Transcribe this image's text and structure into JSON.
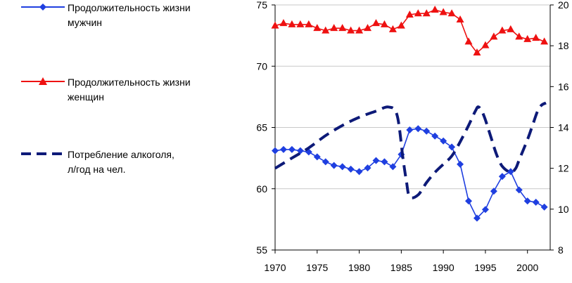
{
  "legend": {
    "male": "Продолжительность жизни\nмужчин",
    "female": "Продолжительность жизни\nженщин",
    "alcohol": "Потребление алкоголя,\nл/год на чел."
  },
  "chart_data": {
    "type": "line",
    "title": "",
    "xlabel": "",
    "ylabel": "",
    "x": [
      1970,
      1971,
      1972,
      1973,
      1974,
      1975,
      1976,
      1977,
      1978,
      1979,
      1980,
      1981,
      1982,
      1983,
      1984,
      1985,
      1986,
      1987,
      1988,
      1989,
      1990,
      1991,
      1992,
      1993,
      1994,
      1995,
      1996,
      1997,
      1998,
      1999,
      2000,
      2001,
      2002
    ],
    "xlim": [
      1970,
      2002.7
    ],
    "xticks": [
      1970,
      1975,
      1980,
      1985,
      1990,
      1995,
      2000
    ],
    "ylim": [
      55,
      75
    ],
    "yticks": [
      55,
      60,
      65,
      70,
      75
    ],
    "y2lim": [
      8,
      20
    ],
    "y2ticks": [
      8,
      10,
      12,
      14,
      16,
      18,
      20
    ],
    "series": [
      {
        "name": "Продолжительность жизни мужчин",
        "axis": "left",
        "color": "#1f3fe0",
        "marker": "diamond",
        "dash": "solid",
        "values": [
          63.1,
          63.2,
          63.2,
          63.1,
          63.0,
          62.6,
          62.2,
          61.9,
          61.8,
          61.6,
          61.4,
          61.7,
          62.3,
          62.2,
          61.8,
          62.8,
          64.8,
          64.9,
          64.7,
          64.3,
          63.9,
          63.4,
          62.0,
          59.0,
          57.6,
          58.3,
          59.8,
          61.0,
          61.4,
          59.9,
          59.0,
          58.9,
          58.5
        ]
      },
      {
        "name": "Продолжительность жизни женщин",
        "axis": "left",
        "color": "#ee1111",
        "marker": "triangle",
        "dash": "solid",
        "values": [
          73.3,
          73.5,
          73.4,
          73.4,
          73.4,
          73.1,
          72.9,
          73.1,
          73.1,
          72.9,
          72.9,
          73.1,
          73.5,
          73.4,
          73.0,
          73.3,
          74.2,
          74.3,
          74.3,
          74.6,
          74.4,
          74.3,
          73.8,
          72.0,
          71.1,
          71.7,
          72.4,
          72.9,
          73.0,
          72.4,
          72.2,
          72.3,
          72.0
        ]
      },
      {
        "name": "Потребление алкоголя, л/год на чел.",
        "axis": "right",
        "color": "#0d1a78",
        "marker": "none",
        "dash": "dashed",
        "x": [
          1970,
          1972,
          1974,
          1976,
          1978,
          1980,
          1982,
          1983.5,
          1984.5,
          1985.2,
          1985.6,
          1986,
          1987,
          1988,
          1989,
          1990,
          1991,
          1992,
          1993,
          1993.8,
          1994.2,
          1994.8,
          1995.6,
          1996.3,
          1997,
          1998,
          1998.6,
          1999,
          2000,
          2000.6,
          2001.2,
          2001.7,
          2002.2
        ],
        "values": [
          12.0,
          12.5,
          13.0,
          13.6,
          14.1,
          14.5,
          14.8,
          15.0,
          14.6,
          12.5,
          11.4,
          10.6,
          10.7,
          11.3,
          11.8,
          12.2,
          12.6,
          13.3,
          14.1,
          14.8,
          15.0,
          14.6,
          13.6,
          12.7,
          12.1,
          11.8,
          12.0,
          12.4,
          13.4,
          14.1,
          14.8,
          15.1,
          15.2
        ]
      }
    ]
  }
}
